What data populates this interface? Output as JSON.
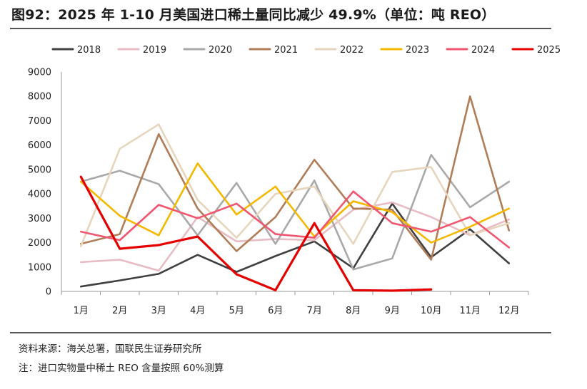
{
  "header": {
    "title": "图92：2025 年 1-10 月美国进口稀土量同比减少 49.9%（单位：吨 REO）"
  },
  "footer": {
    "source": "资料来源：海关总署，国联民生证券研究所",
    "note": "注：进口实物量中稀土 REO 含量按照 60%测算"
  },
  "chart_data": {
    "type": "line",
    "title": "2025 年 1-10 月美国进口稀土量同比减少 49.9%（单位：吨 REO）",
    "xlabel": "",
    "ylabel": "吨 REO",
    "categories": [
      "1月",
      "2月",
      "3月",
      "4月",
      "5月",
      "6月",
      "7月",
      "8月",
      "9月",
      "10月",
      "11月",
      "12月"
    ],
    "ylim": [
      0,
      9000
    ],
    "yticks": [
      0,
      1000,
      2000,
      3000,
      4000,
      5000,
      6000,
      7000,
      8000,
      9000
    ],
    "legend_position": "top",
    "series": [
      {
        "name": "2018",
        "color": "#404040",
        "values": [
          200,
          450,
          720,
          1500,
          800,
          1450,
          2050,
          950,
          3600,
          1400,
          2550,
          1150
        ]
      },
      {
        "name": "2019",
        "color": "#e8bcc4",
        "values": [
          1200,
          1300,
          850,
          3050,
          2050,
          2150,
          2100,
          3350,
          3650,
          3050,
          2300,
          2950
        ]
      },
      {
        "name": "2020",
        "color": "#a9a9a9",
        "values": [
          4500,
          4950,
          4400,
          2300,
          4450,
          1950,
          4550,
          900,
          1350,
          5600,
          3450,
          4500
        ]
      },
      {
        "name": "2021",
        "color": "#b07d58",
        "values": [
          1950,
          2350,
          6450,
          3400,
          1650,
          3050,
          5400,
          3400,
          3350,
          1300,
          8000,
          2500
        ]
      },
      {
        "name": "2022",
        "color": "#e6d6bd",
        "values": [
          1850,
          5850,
          6850,
          3750,
          2200,
          4000,
          4300,
          1950,
          4900,
          5100,
          2300,
          2800
        ]
      },
      {
        "name": "2023",
        "color": "#f5b800",
        "values": [
          4500,
          3100,
          2300,
          5250,
          3150,
          4300,
          2250,
          3700,
          3250,
          2000,
          2650,
          3400
        ]
      },
      {
        "name": "2024",
        "color": "#f05670",
        "values": [
          2450,
          2100,
          3550,
          3000,
          3600,
          2350,
          2200,
          4100,
          2800,
          2450,
          3050,
          1800
        ]
      },
      {
        "name": "2025",
        "color": "#e50000",
        "values": [
          4700,
          1750,
          1900,
          2250,
          700,
          50,
          2800,
          50,
          30,
          80,
          null,
          null
        ]
      }
    ]
  }
}
